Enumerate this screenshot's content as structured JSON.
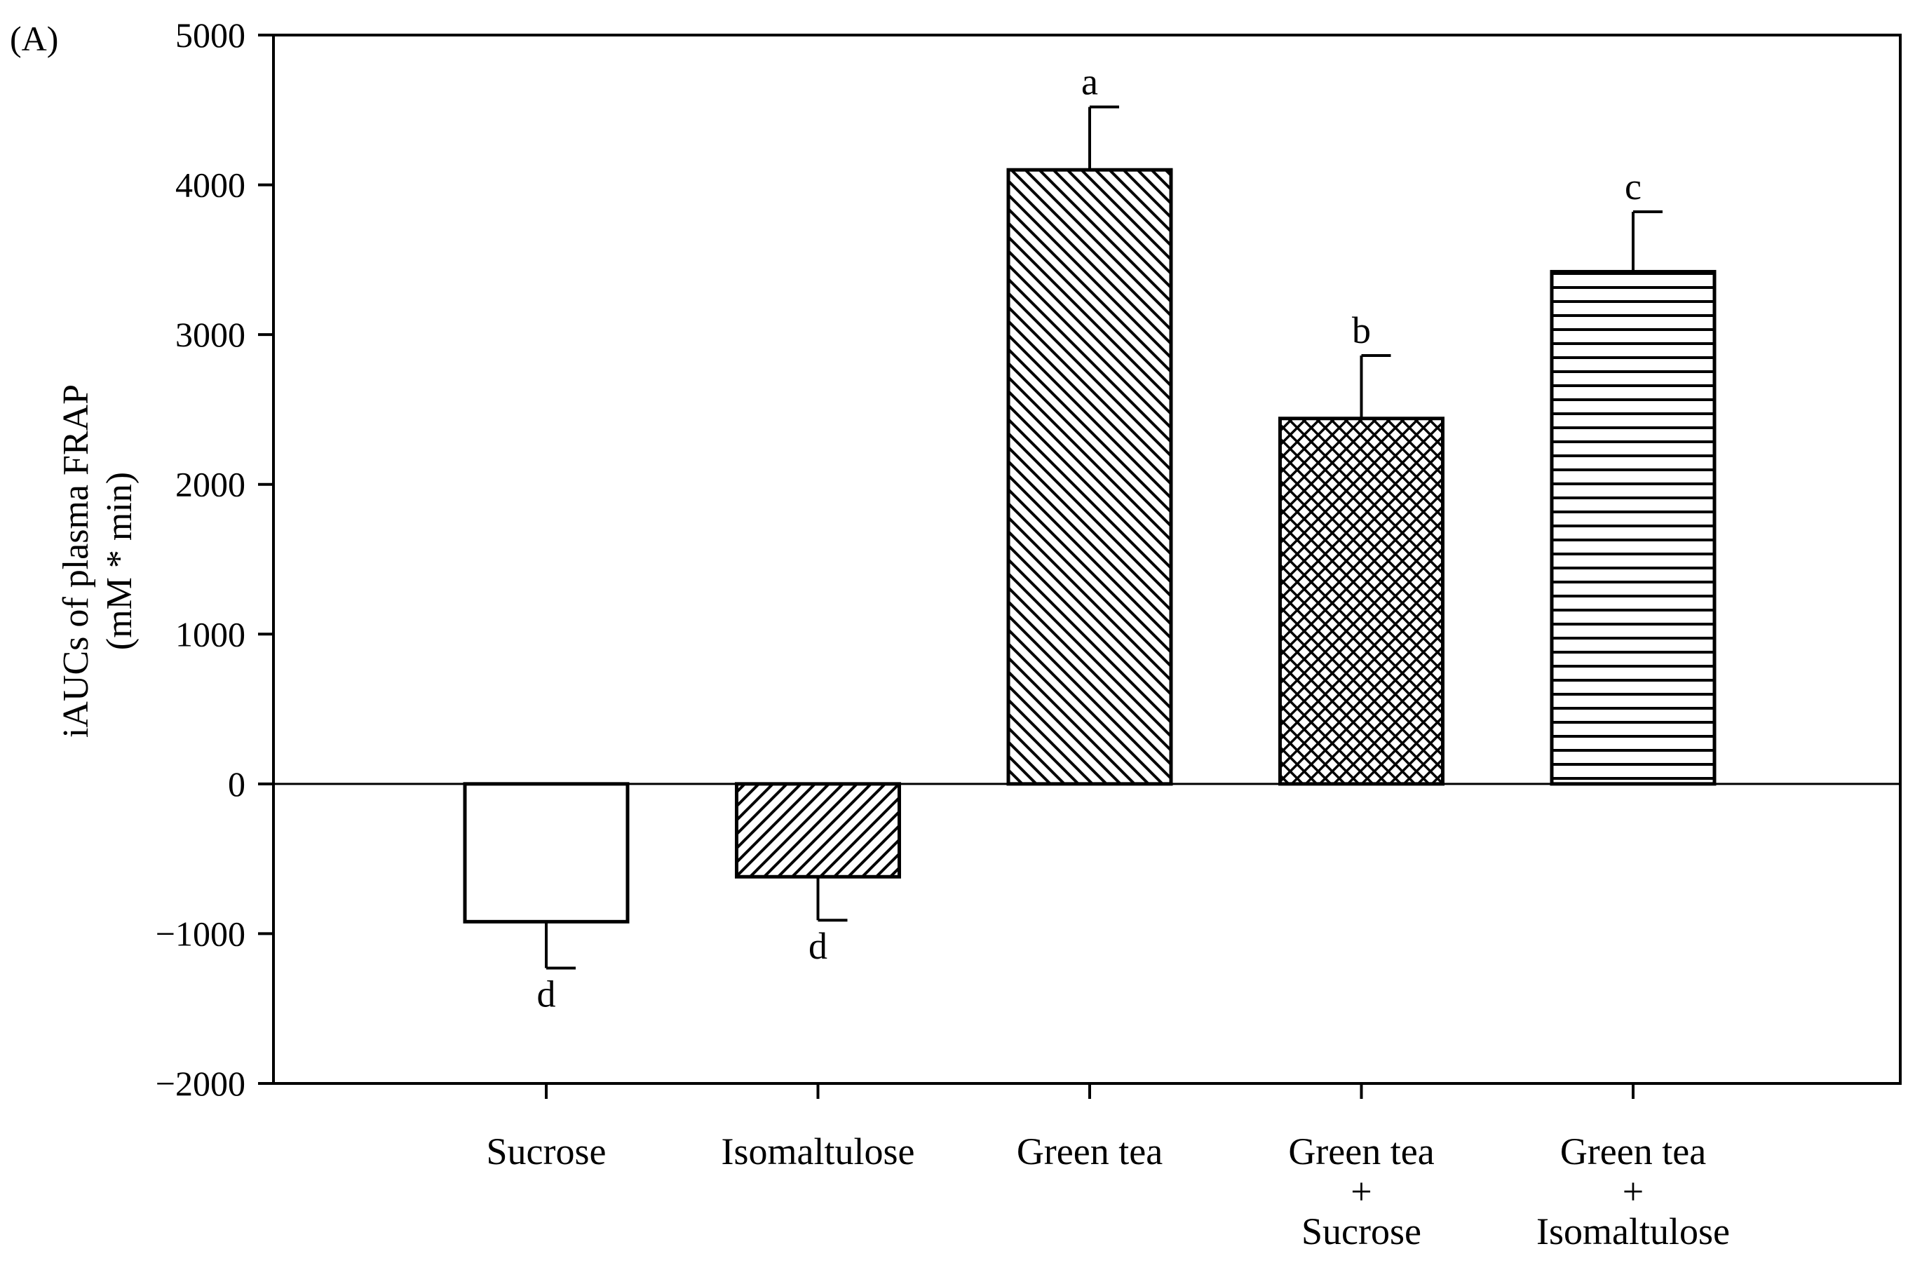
{
  "figure": {
    "panel_label": "(A)"
  },
  "chart_data": {
    "type": "bar",
    "title": "",
    "ylabel": [
      "iAUCs of plasma FRAP",
      "(mM * min)"
    ],
    "xlabel": "",
    "ylim": [
      -2000,
      5000
    ],
    "yticks": [
      -2000,
      -1000,
      0,
      1000,
      2000,
      3000,
      4000,
      5000
    ],
    "ytick_labels": [
      "−2000",
      "−1000",
      "0",
      "1000",
      "2000",
      "3000",
      "4000",
      "5000"
    ],
    "categories": [
      [
        "Sucrose"
      ],
      [
        "Isomaltulose"
      ],
      [
        "Green tea"
      ],
      [
        "Green tea",
        "+",
        "Sucrose"
      ],
      [
        "Green tea",
        "+",
        "Isomaltulose"
      ]
    ],
    "values": [
      -920,
      -620,
      4100,
      2440,
      3420
    ],
    "errors": [
      310,
      290,
      420,
      420,
      400
    ],
    "significance": [
      "d",
      "d",
      "a",
      "b",
      "c"
    ],
    "patterns": [
      "none",
      "diag-up",
      "diag-down",
      "crosshatch",
      "horizontal"
    ],
    "grid": false,
    "legend": "none"
  }
}
